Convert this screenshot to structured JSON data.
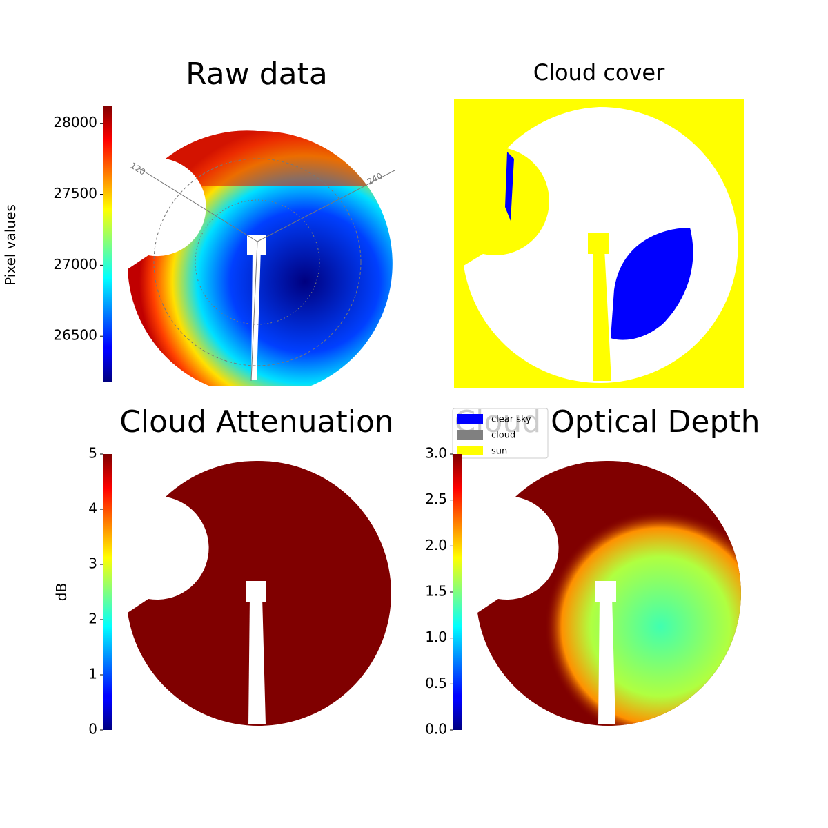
{
  "chart_data": [
    {
      "type": "image",
      "title": "Raw data",
      "colorbar_label": "Pixel values",
      "colormap": "jet",
      "ylim": [
        26180,
        28125
      ],
      "yticks": [
        26500,
        27000,
        27500,
        28000
      ],
      "annotations": [
        "120",
        "240"
      ]
    },
    {
      "type": "image",
      "title": "Cloud cover",
      "series": [
        {
          "name": "clear sky",
          "color": "#0000ff"
        },
        {
          "name": "cloud",
          "color": "#808080"
        },
        {
          "name": "sun",
          "color": "#ffff00"
        }
      ]
    },
    {
      "type": "image",
      "title": "Cloud Attenuation",
      "colorbar_label": "dB",
      "colormap": "jet",
      "ylim": [
        0,
        5
      ],
      "yticks": [
        0,
        1,
        2,
        3,
        4,
        5
      ]
    },
    {
      "type": "image",
      "title": "Cloud Optical Depth",
      "colormap": "jet",
      "ylim": [
        0,
        3
      ],
      "yticks": [
        {
          "value": 0,
          "label": "0.0"
        },
        0.5,
        {
          "value": 1,
          "label": "1.0"
        },
        1.5,
        {
          "value": 2,
          "label": "2.0"
        },
        2.5,
        {
          "value": 3,
          "label": "3.0"
        }
      ]
    }
  ]
}
